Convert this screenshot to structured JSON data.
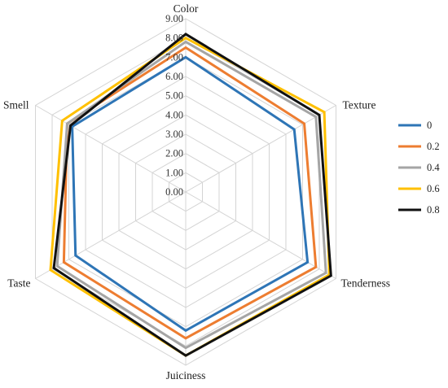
{
  "chart_data": {
    "type": "radar",
    "axes": [
      "Color",
      "Texture",
      "Tenderness",
      "Juiciness",
      "Taste",
      "Smell"
    ],
    "ticks": [
      "0.00",
      "1.00",
      "2.00",
      "3.00",
      "4.00",
      "5.00",
      "6.00",
      "7.00",
      "8.00",
      "9.00"
    ],
    "rlim": [
      0,
      9
    ],
    "grid": true,
    "legend_position": "right",
    "series": [
      {
        "name": "0",
        "color": "#2E75B6",
        "values": [
          7.0,
          6.5,
          7.3,
          7.2,
          6.6,
          6.8
        ]
      },
      {
        "name": "0.2",
        "color": "#ED7D31",
        "values": [
          7.5,
          7.1,
          7.8,
          7.6,
          7.3,
          7.1
        ]
      },
      {
        "name": "0.4",
        "color": "#A5A5A5",
        "values": [
          7.8,
          7.8,
          8.4,
          8.1,
          7.7,
          7.1
        ]
      },
      {
        "name": "0.6",
        "color": "#FFC000",
        "values": [
          8.0,
          8.3,
          8.6,
          8.5,
          8.1,
          7.4
        ]
      },
      {
        "name": "0.8",
        "color": "#111111",
        "values": [
          8.2,
          8.0,
          8.7,
          8.5,
          7.9,
          6.9
        ]
      }
    ]
  }
}
